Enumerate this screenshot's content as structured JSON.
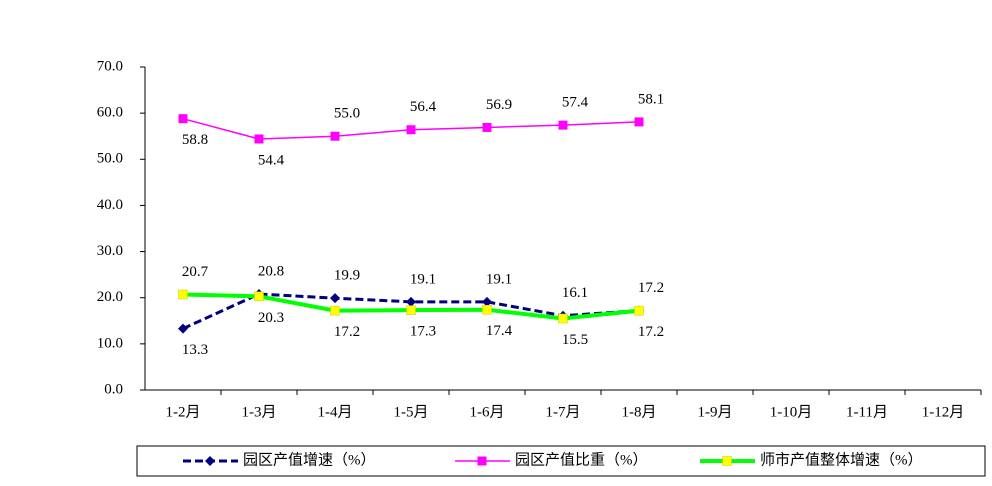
{
  "chart_data": {
    "type": "line",
    "categories": [
      "1-2月",
      "1-3月",
      "1-4月",
      "1-5月",
      "1-6月",
      "1-7月",
      "1-8月",
      "1-9月",
      "1-10月",
      "1-11月",
      "1-12月"
    ],
    "series": [
      {
        "name": "园区产值增速（%）",
        "color": "#000080",
        "dash": true,
        "marker": "diamond",
        "values": [
          13.3,
          20.8,
          19.9,
          19.1,
          19.1,
          16.1,
          17.2,
          null,
          null,
          null,
          null
        ],
        "value_labels": [
          "13.3",
          "20.8",
          "19.9",
          "19.1",
          "19.1",
          "16.1",
          "17.2",
          null,
          null,
          null,
          null
        ]
      },
      {
        "name": "园区产值比重（%）",
        "color": "#ff00ff",
        "dash": false,
        "marker": "square",
        "values": [
          58.8,
          54.4,
          55.0,
          56.4,
          56.9,
          57.4,
          58.1,
          null,
          null,
          null,
          null
        ],
        "value_labels": [
          "58.8",
          "54.4",
          "55.0",
          "56.4",
          "56.9",
          "57.4",
          "58.1",
          null,
          null,
          null,
          null
        ]
      },
      {
        "name": "师市产值整体增速（%）",
        "color": "#00ff00",
        "marker_color": "#ffff00",
        "dash": false,
        "marker": "square",
        "values": [
          20.7,
          20.3,
          17.2,
          17.3,
          17.4,
          15.5,
          17.2,
          null,
          null,
          null,
          null
        ],
        "value_labels": [
          "20.7",
          "20.3",
          "17.2",
          "17.3",
          "17.4",
          "15.5",
          "17.2",
          null,
          null,
          null,
          null
        ]
      }
    ],
    "ylim": [
      0,
      70
    ],
    "yticks": [
      {
        "value": 0,
        "label": "0.0"
      },
      {
        "value": 10,
        "label": "10.0"
      },
      {
        "value": 20,
        "label": "20.0"
      },
      {
        "value": 30,
        "label": "30.0"
      },
      {
        "value": 40,
        "label": "40.0"
      },
      {
        "value": 50,
        "label": "50.0"
      },
      {
        "value": 60,
        "label": "60.0"
      },
      {
        "value": 70,
        "label": "70.0"
      }
    ],
    "grid": false,
    "legend": "bottom"
  }
}
